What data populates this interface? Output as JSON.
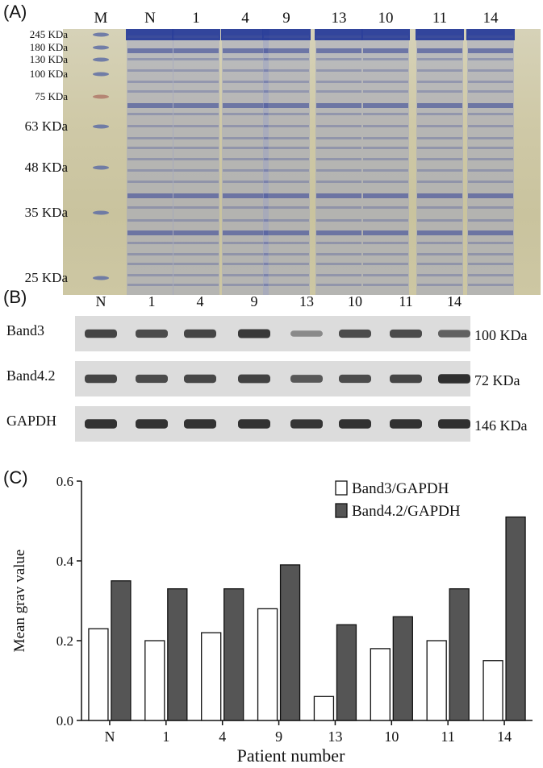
{
  "panels": {
    "a_label": "(A)",
    "b_label": "(B)",
    "c_label": "(C)"
  },
  "gel": {
    "lanes": [
      "M",
      "N",
      "1",
      "4",
      "9",
      "13",
      "10",
      "11",
      "14"
    ],
    "markers": [
      "245 KDa",
      "180 KDa",
      "130 KDa",
      "100 KDa",
      "75 KDa",
      "63 KDa",
      "48 KDa",
      "35 KDa",
      "25 KDa"
    ]
  },
  "blot": {
    "lanes": [
      "N",
      "1",
      "4",
      "9",
      "13",
      "10",
      "11",
      "14"
    ],
    "rows": [
      {
        "name": "Band3",
        "size": "100 KDa",
        "intensity": [
          0.75,
          0.72,
          0.75,
          0.85,
          0.25,
          0.7,
          0.72,
          0.55
        ]
      },
      {
        "name": "Band4.2",
        "size": "72 KDa",
        "intensity": [
          0.75,
          0.72,
          0.74,
          0.78,
          0.62,
          0.7,
          0.75,
          0.92
        ]
      },
      {
        "name": "GAPDH",
        "size": "146 KDa",
        "intensity": [
          0.9,
          0.9,
          0.9,
          0.9,
          0.88,
          0.9,
          0.9,
          0.92
        ]
      }
    ]
  },
  "chart_data": {
    "type": "bar",
    "categories": [
      "N",
      "1",
      "4",
      "9",
      "13",
      "10",
      "11",
      "14"
    ],
    "series": [
      {
        "name": "Band3/GAPDH",
        "values": [
          0.23,
          0.2,
          0.22,
          0.28,
          0.06,
          0.18,
          0.2,
          0.15
        ],
        "color": "#ffffff"
      },
      {
        "name": "Band4.2/GAPDH",
        "values": [
          0.35,
          0.33,
          0.33,
          0.39,
          0.24,
          0.26,
          0.33,
          0.51
        ],
        "color": "#555555"
      }
    ],
    "xlabel": "Patient number",
    "ylabel": "Mean grav value",
    "ylim": [
      0.0,
      0.6
    ],
    "yticks": [
      "0.0",
      "0.2",
      "0.4",
      "0.6"
    ],
    "legend": "top-right"
  }
}
